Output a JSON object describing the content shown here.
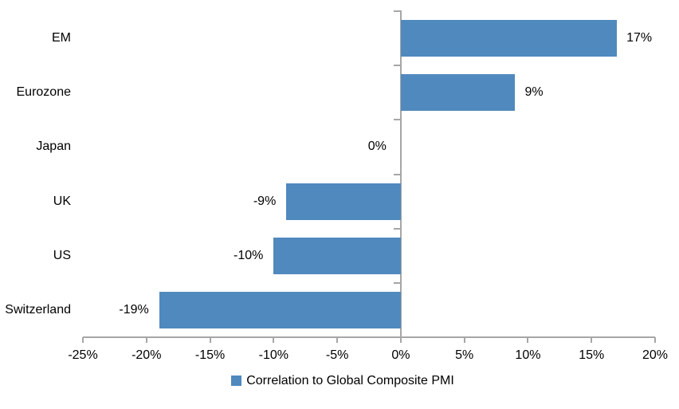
{
  "chart_data": {
    "type": "bar",
    "orientation": "horizontal",
    "title": "",
    "xlabel": "",
    "ylabel": "",
    "series_name": "Correlation to Global Composite PMI",
    "categories": [
      "EM",
      "Eurozone",
      "Japan",
      "UK",
      "US",
      "Switzerland"
    ],
    "values": [
      17,
      9,
      0,
      -9,
      -10,
      -19
    ],
    "data_labels": [
      "17%",
      "9%",
      "0%",
      "-9%",
      "-10%",
      "-19%"
    ],
    "x_ticks": [
      -25,
      -20,
      -15,
      -10,
      -5,
      0,
      5,
      10,
      15,
      20
    ],
    "x_tick_labels": [
      "-25%",
      "-20%",
      "-15%",
      "-10%",
      "-5%",
      "0%",
      "5%",
      "10%",
      "15%",
      "20%"
    ],
    "xlim": [
      -25,
      20
    ],
    "grid": false,
    "legend_position": "bottom",
    "bar_color": "#5089be",
    "axis_color": "#a6a6a6",
    "text_color": "#000000",
    "background_color": "#ffffff"
  }
}
